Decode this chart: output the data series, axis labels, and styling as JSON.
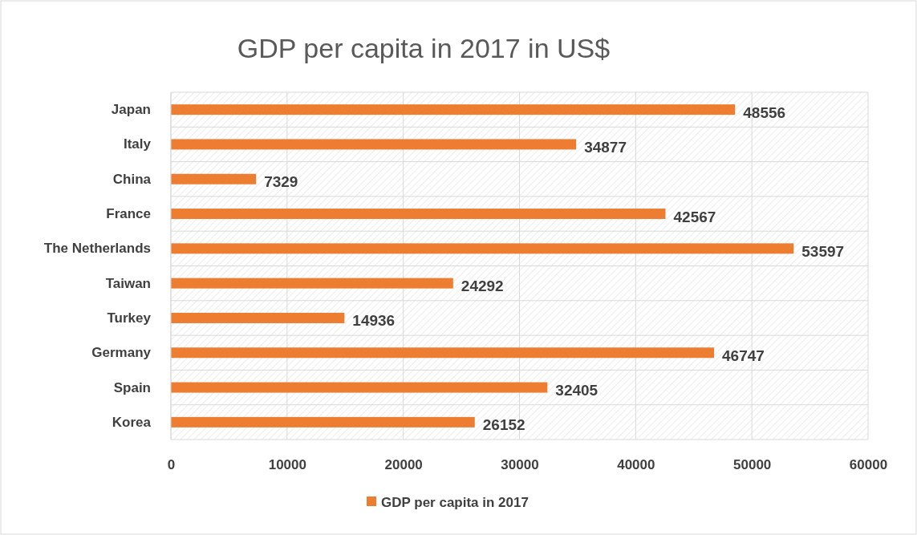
{
  "chart_data": {
    "type": "bar",
    "orientation": "horizontal",
    "title": "GDP per capita in 2017 in US$",
    "categories": [
      "Japan",
      "Italy",
      "China",
      "France",
      "The Netherlands",
      "Taiwan",
      "Turkey",
      "Germany",
      "Spain",
      "Korea"
    ],
    "series": [
      {
        "name": "GDP per capita in 2017",
        "color": "#ed7d31",
        "values": [
          48556,
          34877,
          7329,
          42567,
          53597,
          24292,
          14936,
          46747,
          32405,
          26152
        ]
      }
    ],
    "xlim": [
      0,
      60000
    ],
    "xticks": [
      0,
      10000,
      20000,
      30000,
      40000,
      50000,
      60000
    ],
    "grid": true,
    "legend": "bottom",
    "data_labels": true
  }
}
